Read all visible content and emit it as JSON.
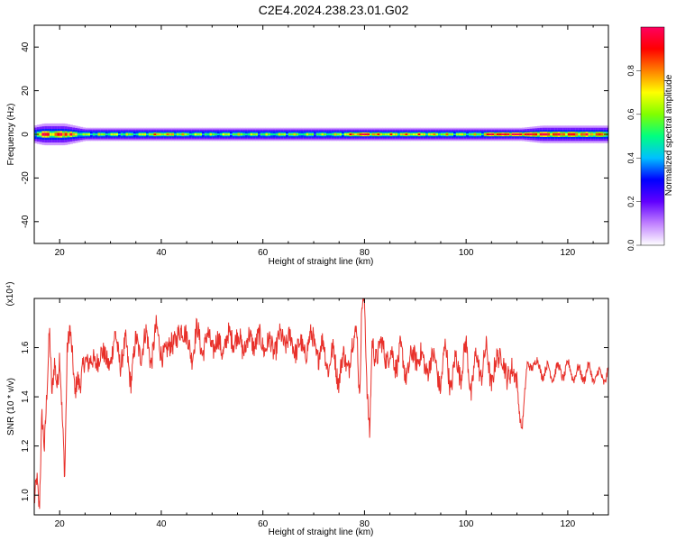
{
  "page": {
    "title": "C2E4.2024.238.23.01.G02"
  },
  "chart_data": [
    {
      "type": "heatmap",
      "xlabel": "Height of straight line (km)",
      "ylabel": "Frequency (Hz)",
      "xlim": [
        15,
        128
      ],
      "ylim": [
        -50,
        50
      ],
      "xticks": [
        20,
        40,
        60,
        80,
        100,
        120
      ],
      "yticks": [
        40,
        20,
        0,
        -20,
        -40
      ],
      "colorbar": {
        "label": "Normalized spectral amplitude",
        "range": [
          0,
          1
        ],
        "ticks": [
          "0.0",
          "0.2",
          "0.4",
          "0.6",
          "0.8"
        ],
        "tick_values": [
          0.0,
          0.2,
          0.4,
          0.6,
          0.8
        ],
        "colormap": [
          "#ffffff",
          "#c080ff",
          "#6000ff",
          "#0000ff",
          "#00c0ff",
          "#00ff80",
          "#80ff00",
          "#ffff00",
          "#ff8000",
          "#ff0000",
          "#ff0060"
        ]
      },
      "band": {
        "x": [
          15,
          17,
          19,
          21,
          23,
          25,
          30,
          35,
          40,
          45,
          50,
          55,
          60,
          65,
          70,
          75,
          78,
          80,
          82,
          85,
          90,
          95,
          100,
          103,
          105,
          107,
          109,
          111,
          115,
          120,
          125,
          128
        ],
        "center_amplitude": [
          0.55,
          0.95,
          0.75,
          0.95,
          0.7,
          0.55,
          0.6,
          0.55,
          0.75,
          0.6,
          0.55,
          0.6,
          0.55,
          0.6,
          0.55,
          0.6,
          0.8,
          0.98,
          0.75,
          0.7,
          0.75,
          0.65,
          0.6,
          0.6,
          0.97,
          0.9,
          0.98,
          0.95,
          0.9,
          0.85,
          0.8,
          0.75
        ],
        "halfwidth_hz": [
          4,
          5,
          5,
          5,
          4,
          3,
          3,
          3,
          3,
          3,
          3,
          3,
          3,
          3,
          3,
          3,
          3,
          3,
          3,
          3,
          3,
          3,
          3,
          3,
          3,
          3,
          3,
          3,
          4,
          4,
          4,
          4
        ]
      }
    },
    {
      "type": "line",
      "xlabel": "Height of straight line (km)",
      "ylabel": "SNR (10 * v/v)",
      "multiplier": "(x10⁴)",
      "xlim": [
        15,
        128
      ],
      "ylim": [
        0.92,
        1.8
      ],
      "xticks": [
        20,
        40,
        60,
        80,
        100,
        120
      ],
      "yticks": [
        1.0,
        1.2,
        1.4,
        1.6
      ],
      "ytick_labels": [
        "1.0",
        "1.2",
        "1.4",
        "1.6"
      ],
      "series": [
        {
          "color": "#e8302a",
          "x": [
            15.0,
            15.5,
            16.0,
            16.5,
            17.0,
            17.5,
            18.0,
            18.5,
            19.0,
            19.5,
            20.0,
            20.5,
            21.0,
            21.5,
            22.0,
            22.5,
            23.0,
            23.5,
            24.0,
            25.0,
            26.0,
            27.0,
            28.0,
            29.0,
            30.0,
            31.0,
            32.0,
            33.0,
            34.0,
            35.0,
            36.0,
            37.0,
            38.0,
            39.0,
            40.0,
            41.0,
            42.0,
            43.0,
            44.0,
            45.0,
            46.0,
            47.0,
            48.0,
            49.0,
            50.0,
            52.0,
            54.0,
            56.0,
            58.0,
            60.0,
            62.0,
            64.0,
            66.0,
            68.0,
            70.0,
            71.0,
            72.0,
            73.0,
            74.0,
            75.0,
            76.0,
            77.0,
            78.0,
            78.5,
            79.0,
            79.5,
            80.0,
            80.5,
            81.0,
            81.5,
            82.0,
            83.0,
            84.0,
            85.0,
            86.0,
            87.0,
            88.0,
            89.0,
            90.0,
            91.0,
            92.0,
            93.0,
            94.0,
            95.0,
            96.0,
            97.0,
            98.0,
            99.0,
            100.0,
            101.0,
            102.0,
            103.0,
            104.0,
            105.0,
            106.0,
            107.0,
            108.0,
            109.0,
            110.0,
            110.5,
            111.0,
            112.0,
            113.0,
            114.0,
            115.0,
            116.0,
            118.0,
            120.0,
            122.0,
            124.0,
            126.0,
            128.0
          ],
          "y": [
            0.95,
            1.1,
            0.96,
            1.3,
            1.17,
            1.45,
            1.7,
            1.38,
            1.52,
            1.46,
            1.6,
            1.3,
            1.05,
            1.62,
            1.71,
            1.55,
            1.38,
            1.5,
            1.47,
            1.52,
            1.58,
            1.5,
            1.61,
            1.53,
            1.56,
            1.63,
            1.55,
            1.6,
            1.48,
            1.61,
            1.59,
            1.64,
            1.56,
            1.66,
            1.6,
            1.55,
            1.65,
            1.6,
            1.71,
            1.62,
            1.58,
            1.66,
            1.6,
            1.63,
            1.62,
            1.6,
            1.65,
            1.61,
            1.63,
            1.62,
            1.6,
            1.64,
            1.61,
            1.59,
            1.64,
            1.55,
            1.63,
            1.5,
            1.6,
            1.45,
            1.58,
            1.52,
            1.64,
            1.72,
            1.38,
            1.75,
            1.79,
            1.47,
            1.25,
            1.6,
            1.55,
            1.63,
            1.55,
            1.6,
            1.5,
            1.62,
            1.46,
            1.58,
            1.53,
            1.6,
            1.48,
            1.57,
            1.52,
            1.46,
            1.6,
            1.44,
            1.55,
            1.5,
            1.6,
            1.43,
            1.56,
            1.5,
            1.58,
            1.47,
            1.53,
            1.6,
            1.44,
            1.55,
            1.43,
            1.33,
            1.3,
            1.5,
            1.55,
            1.52,
            1.51,
            1.5,
            1.5,
            1.51,
            1.49,
            1.5,
            1.48,
            1.49
          ]
        }
      ]
    }
  ]
}
